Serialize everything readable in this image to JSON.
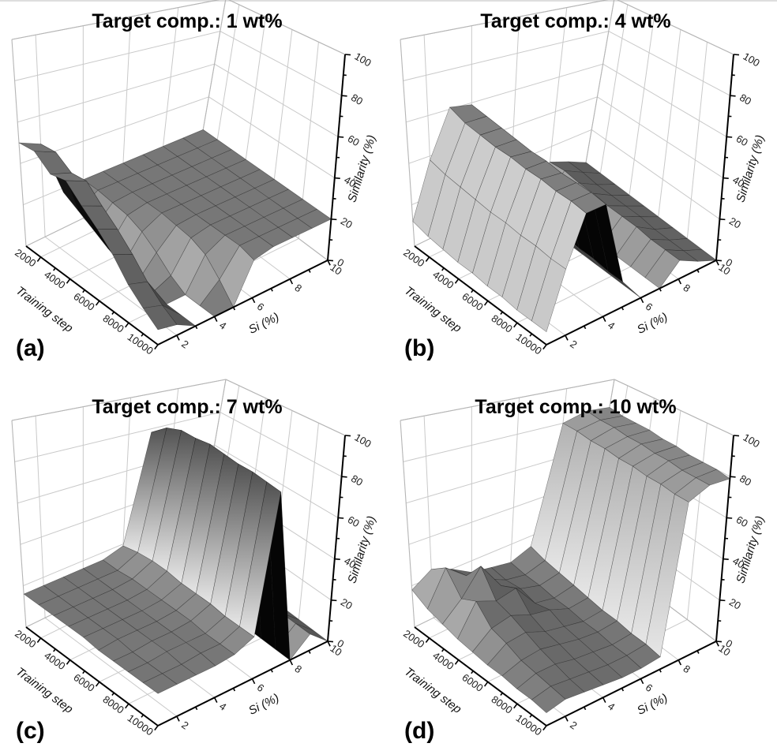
{
  "figure": {
    "background": "#ffffff",
    "style": {
      "grid_color": "#c9c9c9",
      "box_edge_color": "#b5b5b5",
      "axis_color": "#000000",
      "text_color": "#1c1c1c",
      "surface_flat": "#6e6e6e",
      "surface_lit": "#d2d2d2",
      "surface_shadow": "#0a0a0a"
    }
  },
  "chart_data": [
    {
      "panel": "(a)",
      "type": "surface",
      "title": "Target comp.: 1 wt%",
      "xlabel": "Training step",
      "ylabel": "Si (%)",
      "zlabel": "Similarity (%)",
      "x": [
        1000,
        2000,
        3000,
        4000,
        5000,
        6000,
        7000,
        8000,
        9000,
        10000
      ],
      "y": [
        1,
        2,
        3,
        4,
        5,
        6,
        7,
        8,
        9,
        10
      ],
      "x_ticks": [
        2000,
        4000,
        6000,
        8000,
        10000
      ],
      "y_ticks": [
        2,
        4,
        6,
        8,
        10
      ],
      "z_ticks": [
        0,
        20,
        40,
        60,
        80,
        100
      ],
      "zlim": [
        0,
        100
      ],
      "z_values": [
        [
          50,
          46,
          18,
          20,
          20,
          20,
          20,
          20,
          20,
          20
        ],
        [
          51,
          47,
          14,
          20,
          20,
          20,
          20,
          20,
          20,
          20
        ],
        [
          45,
          42,
          10,
          19,
          20,
          20,
          20,
          20,
          20,
          20
        ],
        [
          47,
          43,
          6,
          18,
          20,
          20,
          20,
          20,
          20,
          20
        ],
        [
          40,
          36,
          3,
          15,
          20,
          20,
          20,
          20,
          20,
          20
        ],
        [
          34,
          30,
          0,
          10,
          19,
          20,
          20,
          20,
          20,
          20
        ],
        [
          27,
          23,
          0,
          4,
          18,
          20,
          20,
          20,
          20,
          20
        ],
        [
          18,
          15,
          0,
          0,
          15,
          20,
          20,
          20,
          20,
          20
        ],
        [
          12,
          9,
          0,
          0,
          8,
          20,
          20,
          20,
          20,
          20
        ],
        [
          7,
          5,
          0,
          0,
          0,
          18,
          20,
          20,
          20,
          20
        ]
      ]
    },
    {
      "panel": "(b)",
      "type": "surface",
      "title": "Target comp.: 4 wt%",
      "xlabel": "Training step",
      "ylabel": "Si (%)",
      "zlabel": "Similarity (%)",
      "x": [
        1000,
        2000,
        3000,
        4000,
        5000,
        6000,
        7000,
        8000,
        9000,
        10000
      ],
      "y": [
        1,
        2,
        3,
        4,
        5,
        6,
        7,
        8,
        9,
        10
      ],
      "x_ticks": [
        2000,
        4000,
        6000,
        8000,
        10000
      ],
      "y_ticks": [
        2,
        4,
        6,
        8,
        10
      ],
      "z_ticks": [
        0,
        20,
        40,
        60,
        80,
        100
      ],
      "zlim": [
        0,
        100
      ],
      "z_values": [
        [
          12,
          38,
          61,
          59,
          22,
          0,
          0,
          11,
          6,
          0
        ],
        [
          10,
          36,
          58,
          58,
          19,
          0,
          0,
          12,
          6,
          0
        ],
        [
          9,
          35,
          57,
          57,
          17,
          0,
          0,
          11,
          5,
          0
        ],
        [
          8,
          34,
          56,
          56,
          16,
          0,
          0,
          11,
          5,
          0
        ],
        [
          8,
          33,
          56,
          55,
          15,
          0,
          0,
          10,
          5,
          0
        ],
        [
          7,
          33,
          55,
          55,
          14,
          0,
          0,
          10,
          5,
          0
        ],
        [
          7,
          32,
          55,
          54,
          13,
          0,
          0,
          10,
          4,
          0
        ],
        [
          6,
          32,
          54,
          54,
          13,
          0,
          0,
          9,
          4,
          0
        ],
        [
          6,
          31,
          54,
          54,
          12,
          0,
          0,
          9,
          4,
          0
        ],
        [
          6,
          31,
          53,
          53,
          12,
          0,
          0,
          9,
          4,
          0
        ]
      ]
    },
    {
      "panel": "(c)",
      "type": "surface",
      "title": "Target comp.: 7 wt%",
      "xlabel": "Training step",
      "ylabel": "Si (%)",
      "zlabel": "Similarity (%)",
      "x": [
        1000,
        2000,
        3000,
        4000,
        5000,
        6000,
        7000,
        8000,
        9000,
        10000
      ],
      "y": [
        1,
        2,
        3,
        4,
        5,
        6,
        7,
        8,
        9,
        10
      ],
      "x_ticks": [
        2000,
        4000,
        6000,
        8000,
        10000
      ],
      "y_ticks": [
        2,
        4,
        6,
        8,
        10
      ],
      "z_ticks": [
        0,
        20,
        40,
        60,
        80,
        100
      ],
      "zlim": [
        0,
        100
      ],
      "z_values": [
        [
          16,
          16,
          16,
          16,
          16,
          19,
          78,
          0,
          9,
          0
        ],
        [
          16,
          16,
          16,
          16,
          16,
          21,
          85,
          0,
          10,
          0
        ],
        [
          16,
          16,
          16,
          16,
          17,
          22,
          88,
          0,
          10,
          0
        ],
        [
          16,
          16,
          16,
          16,
          17,
          22,
          88,
          0,
          9,
          0
        ],
        [
          16,
          16,
          16,
          16,
          17,
          21,
          89,
          0,
          9,
          0
        ],
        [
          15,
          16,
          16,
          16,
          17,
          21,
          88,
          0,
          9,
          0
        ],
        [
          15,
          15,
          16,
          16,
          17,
          21,
          87,
          0,
          8,
          0
        ],
        [
          15,
          15,
          16,
          16,
          16,
          20,
          87,
          0,
          8,
          0
        ],
        [
          15,
          15,
          15,
          16,
          16,
          20,
          86,
          0,
          8,
          0
        ],
        [
          15,
          15,
          15,
          15,
          16,
          20,
          85,
          0,
          8,
          0
        ]
      ]
    },
    {
      "panel": "(d)",
      "type": "surface",
      "title": "Target comp.: 10 wt%",
      "xlabel": "Training step",
      "ylabel": "Si (%)",
      "zlabel": "Similarity (%)",
      "x": [
        1000,
        2000,
        3000,
        4000,
        5000,
        6000,
        7000,
        8000,
        9000,
        10000
      ],
      "y": [
        1,
        2,
        3,
        4,
        5,
        6,
        7,
        8,
        9,
        10
      ],
      "x_ticks": [
        2000,
        4000,
        6000,
        8000,
        10000
      ],
      "y_ticks": [
        2,
        4,
        6,
        8,
        10
      ],
      "z_ticks": [
        0,
        20,
        40,
        60,
        80,
        100
      ],
      "zlim": [
        0,
        100
      ],
      "z_values": [
        [
          18,
          24,
          20,
          14,
          12,
          10,
          14,
          80,
          84,
          83
        ],
        [
          14,
          30,
          22,
          16,
          11,
          9,
          12,
          80,
          83,
          82
        ],
        [
          12,
          20,
          32,
          18,
          12,
          9,
          11,
          79,
          83,
          82
        ],
        [
          10,
          24,
          20,
          22,
          10,
          8,
          10,
          79,
          82,
          82
        ],
        [
          9,
          16,
          18,
          14,
          12,
          8,
          9,
          78,
          82,
          81
        ],
        [
          8,
          14,
          15,
          11,
          9,
          7,
          8,
          78,
          81,
          81
        ],
        [
          8,
          11,
          12,
          10,
          8,
          7,
          8,
          77,
          81,
          80
        ],
        [
          7,
          10,
          10,
          8,
          7,
          6,
          7,
          77,
          80,
          80
        ],
        [
          7,
          9,
          8,
          7,
          6,
          6,
          7,
          76,
          80,
          80
        ],
        [
          6,
          8,
          7,
          6,
          5,
          5,
          6,
          76,
          80,
          79
        ]
      ]
    }
  ]
}
